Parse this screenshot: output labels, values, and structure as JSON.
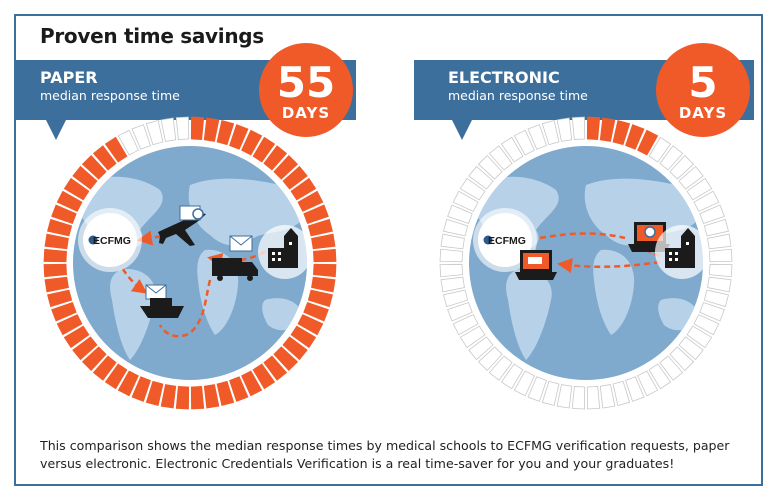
{
  "title": "Proven time savings",
  "caption": "This comparison shows the median response times by medical schools to ECFMG verification requests, paper versus electronic. Electronic Credentials Verification is a real time-saver for you and your graduates!",
  "colors": {
    "frame": "#3d6f9c",
    "banner": "#3d6f9c",
    "accent": "#ef5a28",
    "globe": "#7fa9cd",
    "land": "#b7d2e8"
  },
  "panels": [
    {
      "id": "paper",
      "heading": "PAPER",
      "subheading": "median response time",
      "value": "55",
      "unit": "DAYS",
      "days": 55,
      "ring_segments": 60,
      "logo": "ECFMG",
      "icons": [
        "ecfmg-logo-icon",
        "airplane-icon",
        "envelope-icon",
        "truck-icon",
        "school-building-icon",
        "ship-icon"
      ]
    },
    {
      "id": "electronic",
      "heading": "ELECTRONIC",
      "subheading": "median response time",
      "value": "5",
      "unit": "DAYS",
      "days": 5,
      "ring_segments": 60,
      "logo": "ECFMG",
      "icons": [
        "ecfmg-logo-icon",
        "laptop-icon",
        "laptop-icon",
        "school-building-icon"
      ]
    }
  ]
}
